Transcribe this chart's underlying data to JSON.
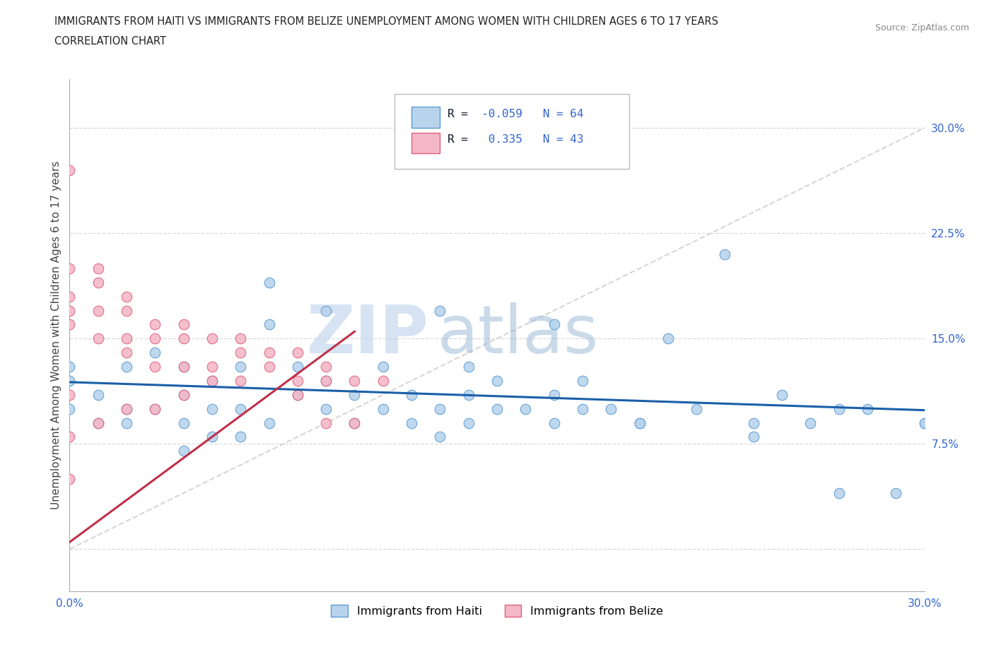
{
  "title_line1": "IMMIGRANTS FROM HAITI VS IMMIGRANTS FROM BELIZE UNEMPLOYMENT AMONG WOMEN WITH CHILDREN AGES 6 TO 17 YEARS",
  "title_line2": "CORRELATION CHART",
  "source": "Source: ZipAtlas.com",
  "ylabel": "Unemployment Among Women with Children Ages 6 to 17 years",
  "haiti_color": "#b8d4ec",
  "haiti_edge_color": "#5b9bd5",
  "belize_color": "#f4b8c8",
  "belize_edge_color": "#e06080",
  "haiti_R": -0.059,
  "haiti_N": 64,
  "belize_R": 0.335,
  "belize_N": 43,
  "watermark_zip": "ZIP",
  "watermark_atlas": "atlas",
  "trend_line_color_haiti": "#1a5fa8",
  "trend_line_color_belize": "#c0304a",
  "diag_line_color": "#cccccc",
  "tick_color": "#3366cc",
  "label_color": "#444444",
  "haiti_label": "Immigrants from Haiti",
  "belize_label": "Immigrants from Belize",
  "legend_R_color": "#cc0000",
  "legend_N_color": "#3366cc"
}
